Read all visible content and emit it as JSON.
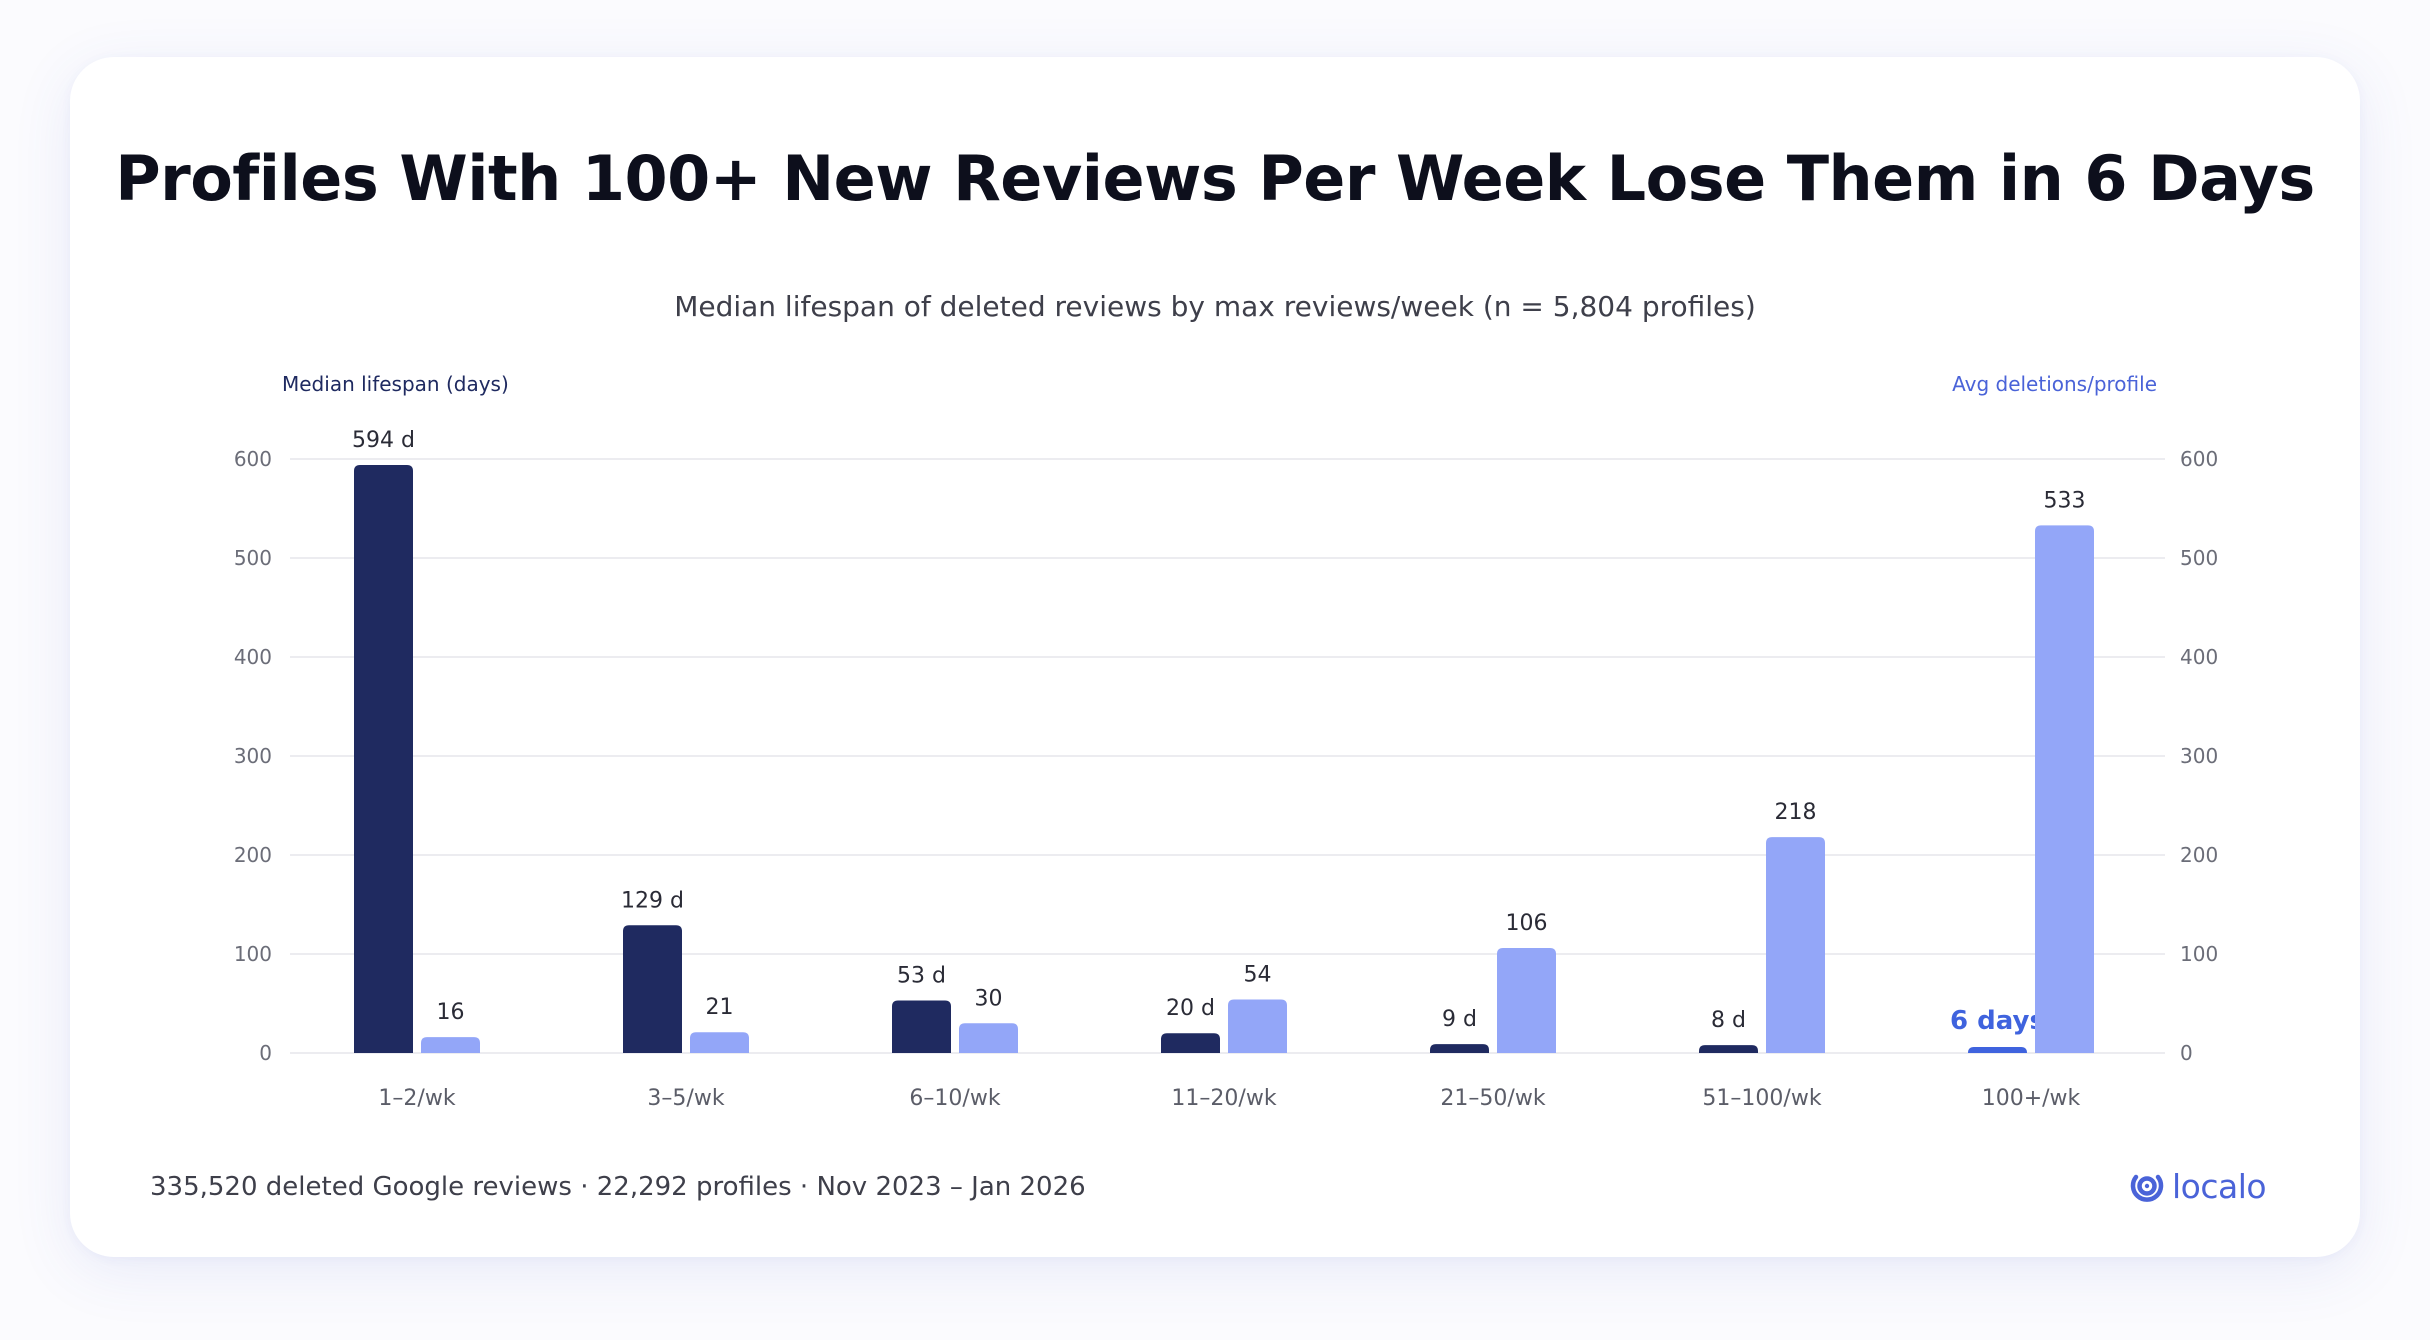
{
  "header": {
    "title": "Profiles With 100+ New Reviews Per Week Lose Them in 6 Days",
    "subtitle": "Median lifespan of deleted reviews by max reviews/week (n = 5,804 profiles)"
  },
  "chart_data": {
    "type": "bar",
    "categories": [
      "1–2/wk",
      "3–5/wk",
      "6–10/wk",
      "11–20/wk",
      "21–50/wk",
      "51–100/wk",
      "100+/wk"
    ],
    "series": [
      {
        "name": "Median lifespan (days)",
        "axis": "left",
        "color": "#1f2a60",
        "highlight_color": "#3f63de",
        "values": [
          594,
          129,
          53,
          20,
          9,
          8,
          6
        ],
        "labels": [
          "594 d",
          "129 d",
          "53 d",
          "20 d",
          "9 d",
          "8 d",
          "6 days"
        ]
      },
      {
        "name": "Avg deletions/profile",
        "axis": "right",
        "color": "#93a6f8",
        "values": [
          16,
          21,
          30,
          54,
          106,
          218,
          533
        ],
        "labels": [
          "16",
          "21",
          "30",
          "54",
          "106",
          "218",
          "533"
        ]
      }
    ],
    "ylabel_left": "Median lifespan (days)",
    "ylabel_right": "Avg deletions/profile",
    "ylim": [
      0,
      600
    ],
    "yticks": [
      0,
      100,
      200,
      300,
      400,
      500,
      600
    ],
    "grid": true,
    "highlight_category": "100+/wk"
  },
  "footer": {
    "source": "335,520 deleted Google reviews · 22,292 profiles · Nov 2023 – Jan 2026",
    "brand": "localo"
  },
  "colors": {
    "left_axis_label": "#1f2a60",
    "right_axis_label": "#4a63d8",
    "grid": "#e6e6ec",
    "tick_text": "#6b6d78",
    "category_text": "#5b5d68",
    "value_text": "#2a2b36",
    "highlight_text": "#3f63de",
    "brand": "#4a63d8"
  }
}
